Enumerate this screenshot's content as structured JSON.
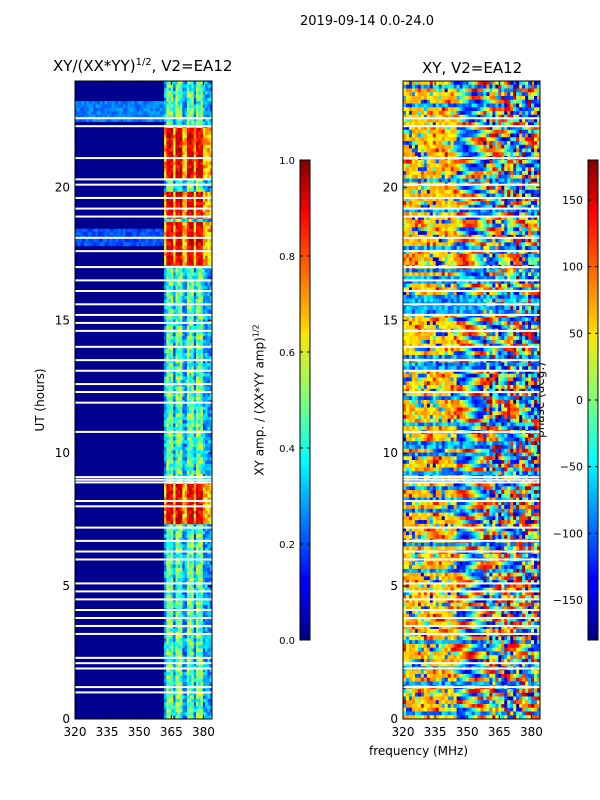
{
  "figure": {
    "suptitle": "2019-09-14 0.0-24.0",
    "xlabel": "frequency (MHz)"
  },
  "chart_data": [
    {
      "type": "heatmap",
      "title_main": "XY/(XX*YY)",
      "title_sup": "1/2",
      "title_rest": ", V2=EA12",
      "xlabel": "",
      "ylabel": "UT (hours)",
      "xlim": [
        320,
        384
      ],
      "ylim": [
        0,
        24
      ],
      "xticks": [
        320,
        335,
        350,
        365,
        380
      ],
      "yticks": [
        0,
        5,
        10,
        15,
        20
      ],
      "colormap": "jet",
      "colorbar": {
        "label_main": "XY amp. / (XX*YY amp)",
        "label_sup": "1/2",
        "range": [
          0.0,
          1.0
        ],
        "ticks": [
          "0.0",
          "0.2",
          "0.4",
          "0.6",
          "0.8",
          "1.0"
        ],
        "tick_values": [
          0.0,
          0.2,
          0.4,
          0.6,
          0.8,
          1.0
        ]
      },
      "high_channels_mhz": [
        364.5,
        369,
        373.5,
        378.5
      ],
      "high_hour_bands": [
        [
          7.3,
          8.8
        ],
        [
          17.1,
          17.9
        ],
        [
          18.0,
          18.7
        ],
        [
          18.8,
          19.8
        ],
        [
          20.3,
          22.2
        ]
      ],
      "flagged_hours": [
        1.0,
        1.2,
        1.9,
        2.1,
        2.3,
        3.2,
        3.5,
        3.8,
        4.1,
        4.5,
        4.8,
        5.1,
        6.0,
        6.3,
        6.7,
        7.2,
        8.0,
        8.2,
        8.9,
        9.0,
        9.1,
        10.8,
        11.9,
        12.3,
        12.6,
        13.1,
        13.5,
        14.0,
        14.6,
        14.9,
        15.2,
        15.6,
        16.1,
        16.5,
        17.0,
        17.6,
        18.1,
        18.9,
        19.2,
        19.6,
        20.1,
        20.3,
        21.1,
        22.3,
        22.6
      ]
    },
    {
      "type": "heatmap",
      "title": "XY, V2=EA12",
      "xlabel": "",
      "ylabel": "",
      "xlim": [
        320,
        384
      ],
      "ylim": [
        0,
        24
      ],
      "xticks": [
        320,
        335,
        350,
        365,
        380
      ],
      "yticks": [
        0,
        5,
        10,
        15,
        20
      ],
      "colormap": "jet",
      "colorbar": {
        "label": "phase (deg.)",
        "range": [
          -180,
          180
        ],
        "ticks": [
          "−150",
          "−100",
          "−50",
          "0",
          "50",
          "100",
          "150"
        ],
        "tick_values": [
          -150,
          -100,
          -50,
          0,
          50,
          100,
          150
        ]
      },
      "flagged_hours": [
        1.2,
        1.9,
        2.1,
        3.2,
        3.5,
        3.8,
        4.1,
        4.5,
        4.8,
        5.1,
        6.0,
        6.3,
        6.7,
        7.2,
        8.2,
        8.9,
        9.0,
        9.1,
        10.8,
        12.3,
        13.1,
        13.5,
        14.0,
        14.6,
        15.2,
        15.6,
        16.1,
        16.5,
        17.0,
        17.6,
        18.1,
        18.9,
        19.2,
        19.6,
        20.1,
        21.1,
        22.3,
        22.6
      ]
    }
  ]
}
